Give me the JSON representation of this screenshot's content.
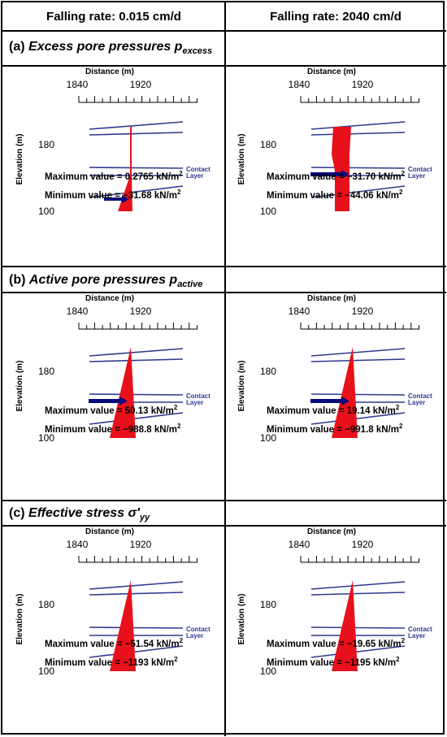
{
  "columns": [
    "Falling rate: 0.015 cm/d",
    "Falling rate: 2040 cm/d"
  ],
  "sections": [
    {
      "label": "(a)",
      "title": "Excess pore pressures p",
      "subscript": "excess",
      "panels": [
        {
          "shape": "thin-line-toe",
          "arrow": "bottom-small",
          "max": "Maximum value = 0.2765  kN/m",
          "min": "Minimum value = −31.68  kN/m"
        },
        {
          "shape": "column",
          "arrow": "mid",
          "max": "Maximum value = −31.70  kN/m",
          "min": "Minimum value = −44.06  kN/m"
        }
      ]
    },
    {
      "label": "(b)",
      "title": "Active pore pressures p",
      "subscript": "active",
      "panels": [
        {
          "shape": "triangle",
          "arrow": "mid",
          "max": "Maximum value = 50.13  kN/m",
          "min": "Minimum value = −988.8  kN/m"
        },
        {
          "shape": "triangle",
          "arrow": "mid",
          "max": "Maximum value = 19.14  kN/m",
          "min": "Minimum value = −991.8  kN/m"
        }
      ]
    },
    {
      "label": "(c)",
      "title": "Effective stress σ′",
      "subscript": "yy",
      "panels": [
        {
          "shape": "triangle",
          "arrow": "none",
          "max": "Maximum value = −51.54  kN/m",
          "min": "Minimum value = −1193  kN/m"
        },
        {
          "shape": "triangle",
          "arrow": "none",
          "max": "Maximum value = −19.65  kN/m",
          "min": "Minimum value = −1195  kN/m"
        }
      ]
    }
  ],
  "axis": {
    "x_title": "Distance (m)",
    "x_ticks": [
      "1840",
      "1920"
    ],
    "y_title": "Elevation (m)",
    "y_ticks": [
      "180",
      "100"
    ]
  },
  "layer_labels": {
    "contact": "Contact",
    "layer": "Layer"
  },
  "unit_sup": "2",
  "colors": {
    "line": "#2e3a8c",
    "fill": "#e8101a",
    "arrow": "#0a0a7a",
    "contact_text": "#2e3a8c"
  }
}
